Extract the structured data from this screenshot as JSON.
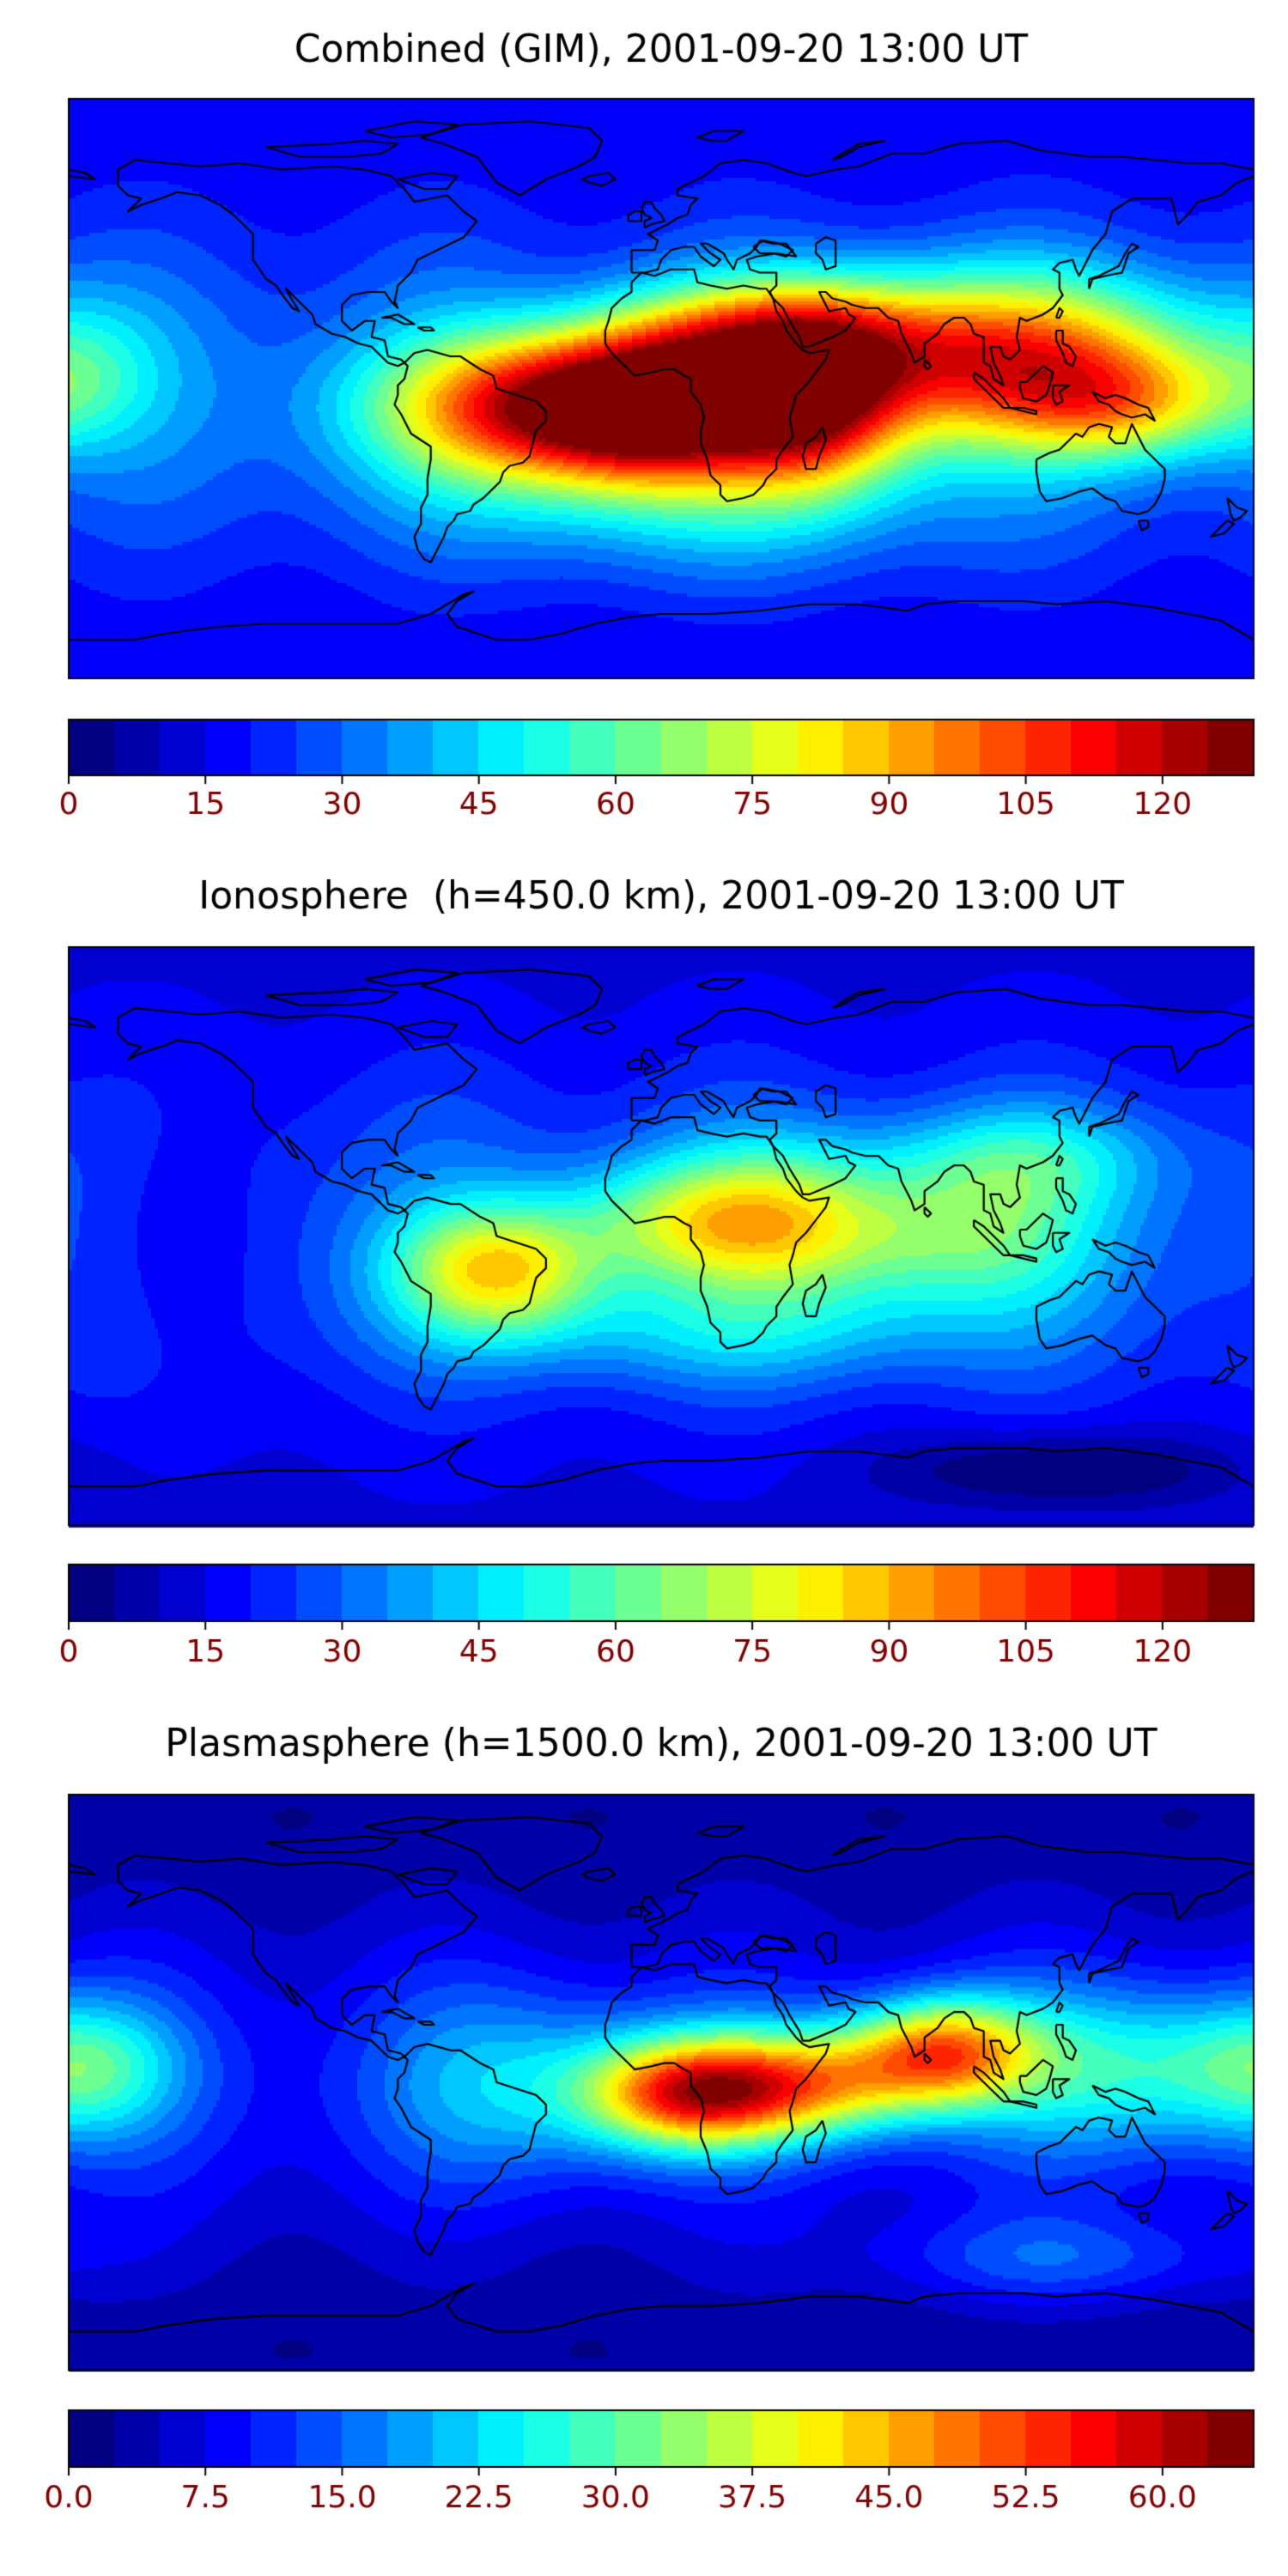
{
  "panels": [
    {
      "title": "Combined (GIM), 2001-09-20 13:00 UT",
      "colorbar": {
        "min": 0,
        "max": 130,
        "levels": 26,
        "ticks": [
          "0",
          "15",
          "30",
          "45",
          "60",
          "75",
          "90",
          "105",
          "120"
        ],
        "tick_values": [
          0,
          15,
          30,
          45,
          60,
          75,
          90,
          105,
          120
        ]
      },
      "base": 0.18,
      "blobs": [
        {
          "lon": -25,
          "lat": -5,
          "sx": 38,
          "sy": 16,
          "a": 0.8
        },
        {
          "lon": 0,
          "lat": -3,
          "sx": 22,
          "sy": 18,
          "a": 0.3
        },
        {
          "lon": 45,
          "lat": -5,
          "sx": 20,
          "sy": 18,
          "a": 0.52
        },
        {
          "lon": 100,
          "lat": 10,
          "sx": 45,
          "sy": 18,
          "a": 0.58
        },
        {
          "lon": 35,
          "lat": 18,
          "sx": 30,
          "sy": 12,
          "a": 0.32
        },
        {
          "lon": 140,
          "lat": -5,
          "sx": 25,
          "sy": 12,
          "a": 0.28
        },
        {
          "lon": 10,
          "lat": -35,
          "sx": 60,
          "sy": 18,
          "a": 0.14
        },
        {
          "lon": -175,
          "lat": 5,
          "sx": 15,
          "sy": 15,
          "a": 0.1
        }
      ]
    },
    {
      "title": "Ionosphere  (h=450.0 km), 2001-09-20 13:00 UT",
      "colorbar": {
        "min": 0,
        "max": 130,
        "levels": 26,
        "ticks": [
          "0",
          "15",
          "30",
          "45",
          "60",
          "75",
          "90",
          "105",
          "120"
        ],
        "tick_values": [
          0,
          15,
          30,
          45,
          60,
          75,
          90,
          105,
          120
        ]
      },
      "base": 0.17,
      "blobs": [
        {
          "lon": -50,
          "lat": -10,
          "sx": 22,
          "sy": 14,
          "a": 0.42
        },
        {
          "lon": 10,
          "lat": 5,
          "sx": 28,
          "sy": 14,
          "a": 0.3
        },
        {
          "lon": 40,
          "lat": 5,
          "sx": 25,
          "sy": 18,
          "a": 0.22
        },
        {
          "lon": 90,
          "lat": 0,
          "sx": 30,
          "sy": 16,
          "a": 0.24
        },
        {
          "lon": 20,
          "lat": -30,
          "sx": 55,
          "sy": 12,
          "a": 0.13
        },
        {
          "lon": 110,
          "lat": 25,
          "sx": 30,
          "sy": 12,
          "a": 0.18
        },
        {
          "lon": -150,
          "lat": 0,
          "sx": 20,
          "sy": 30,
          "a": -0.12
        },
        {
          "lon": 120,
          "lat": -72,
          "sx": 35,
          "sy": 8,
          "a": -0.14
        }
      ]
    },
    {
      "title": "Plasmasphere (h=1500.0 km), 2001-09-20 13:00 UT",
      "colorbar": {
        "min": 0,
        "max": 65,
        "levels": 26,
        "ticks": [
          "0.0",
          "7.5",
          "15.0",
          "22.5",
          "30.0",
          "37.5",
          "45.0",
          "52.5",
          "60.0"
        ],
        "tick_values": [
          0,
          7.5,
          15,
          22.5,
          30,
          37.5,
          45,
          52.5,
          60
        ]
      },
      "base": 0.1,
      "blobs": [
        {
          "lon": 8,
          "lat": -3,
          "sx": 22,
          "sy": 12,
          "a": 0.6
        },
        {
          "lon": 45,
          "lat": 0,
          "sx": 25,
          "sy": 12,
          "a": 0.45
        },
        {
          "lon": 85,
          "lat": 10,
          "sx": 20,
          "sy": 12,
          "a": 0.55
        },
        {
          "lon": 140,
          "lat": 5,
          "sx": 30,
          "sy": 18,
          "a": 0.25
        },
        {
          "lon": -175,
          "lat": 5,
          "sx": 20,
          "sy": 15,
          "a": 0.25
        },
        {
          "lon": -40,
          "lat": 0,
          "sx": 30,
          "sy": 20,
          "a": 0.18
        },
        {
          "lon": 120,
          "lat": -55,
          "sx": 40,
          "sy": 10,
          "a": 0.14
        }
      ]
    }
  ],
  "colormap": "jet"
}
